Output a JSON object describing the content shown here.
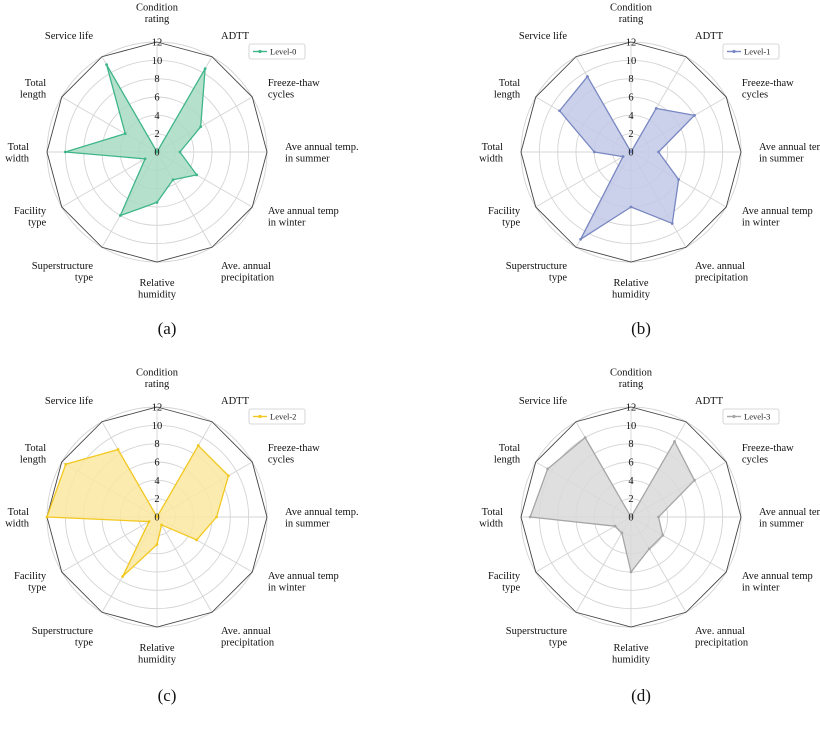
{
  "chart_data": [
    {
      "type": "radar",
      "panel_label": "(a)",
      "axes": [
        "Condition rating",
        "ADTT",
        "Freeze-thaw cycles",
        "Ave annual temp. in summer",
        "Ave annual temp in winter",
        "Ave. annual precipitation",
        "Relative humidity",
        "Superstructure type",
        "Facility type",
        "Total width",
        "Total length",
        "Service life"
      ],
      "axis_label_lines": [
        [
          "Condition",
          "rating"
        ],
        [
          "ADTT"
        ],
        [
          "Freeze-thaw",
          "cycles"
        ],
        [
          "Ave annual temp.",
          "in summer"
        ],
        [
          "Ave annual temp",
          "in winter"
        ],
        [
          "Ave. annual",
          "precipitation"
        ],
        [
          "Relative",
          "humidity"
        ],
        [
          "Superstructure",
          "type"
        ],
        [
          "Facility",
          "type"
        ],
        [
          "Total",
          "width"
        ],
        [
          "Total",
          "length"
        ],
        [
          "Service life"
        ]
      ],
      "ticks": [
        0,
        2,
        4,
        6,
        8,
        10,
        12
      ],
      "rlim": [
        0,
        12
      ],
      "grid": true,
      "legend_position": "top-right",
      "series": [
        {
          "name": "Level-0",
          "color": "#3fb58a",
          "fill": "#a8dcc3",
          "values": [
            0,
            10.5,
            5.5,
            2.5,
            5.0,
            3.5,
            5.5,
            8.0,
            1.5,
            10.0,
            4.0,
            11.0
          ]
        }
      ]
    },
    {
      "type": "radar",
      "panel_label": "(b)",
      "axes": [
        "Condition rating",
        "ADTT",
        "Freeze-thaw cycles",
        "Ave annual temp. in summer",
        "Ave annual temp in winter",
        "Ave. annual precipitation",
        "Relative humidity",
        "Superstructure type",
        "Facility type",
        "Total width",
        "Total length",
        "Service life"
      ],
      "axis_label_lines": [
        [
          "Condition",
          "rating"
        ],
        [
          "ADTT"
        ],
        [
          "Freeze-thaw",
          "cycles"
        ],
        [
          "Ave annual temp.",
          "in summer"
        ],
        [
          "Ave annual temp",
          "in winter"
        ],
        [
          "Ave. annual",
          "precipitation"
        ],
        [
          "Relative",
          "humidity"
        ],
        [
          "Superstructure",
          "type"
        ],
        [
          "Facility",
          "type"
        ],
        [
          "Total",
          "width"
        ],
        [
          "Total",
          "length"
        ],
        [
          "Service life"
        ]
      ],
      "ticks": [
        0,
        2,
        4,
        6,
        8,
        10,
        12
      ],
      "rlim": [
        0,
        12
      ],
      "grid": true,
      "legend_position": "top-right",
      "series": [
        {
          "name": "Level-1",
          "color": "#7987c2",
          "fill": "#c2c9e6",
          "values": [
            0,
            5.5,
            8.0,
            3.0,
            6.0,
            9.0,
            6.0,
            11.0,
            1.0,
            4.0,
            9.0,
            9.5
          ]
        }
      ]
    },
    {
      "type": "radar",
      "panel_label": "(c)",
      "axes": [
        "Condition rating",
        "ADTT",
        "Freeze-thaw cycles",
        "Ave annual temp. in summer",
        "Ave annual temp in winter",
        "Ave. annual precipitation",
        "Relative humidity",
        "Superstructure type",
        "Facility type",
        "Total width",
        "Total length",
        "Service life"
      ],
      "axis_label_lines": [
        [
          "Condition",
          "rating"
        ],
        [
          "ADTT"
        ],
        [
          "Freeze-thaw",
          "cycles"
        ],
        [
          "Ave annual temp.",
          "in summer"
        ],
        [
          "Ave annual temp",
          "in winter"
        ],
        [
          "Ave. annual",
          "precipitation"
        ],
        [
          "Relative",
          "humidity"
        ],
        [
          "Superstructure",
          "type"
        ],
        [
          "Facility",
          "type"
        ],
        [
          "Total",
          "width"
        ],
        [
          "Total",
          "length"
        ],
        [
          "Service life"
        ]
      ],
      "ticks": [
        0,
        2,
        4,
        6,
        8,
        10,
        12
      ],
      "rlim": [
        0,
        12
      ],
      "grid": true,
      "legend_position": "top-right",
      "series": [
        {
          "name": "Level-2",
          "color": "#f2c81f",
          "fill": "#fbe8a0",
          "values": [
            0,
            9.0,
            9.0,
            6.5,
            5.0,
            1.0,
            3.0,
            7.5,
            1.0,
            12.0,
            11.5,
            8.5
          ]
        }
      ]
    },
    {
      "type": "radar",
      "panel_label": "(d)",
      "axes": [
        "Condition rating",
        "ADTT",
        "Freeze-thaw cycles",
        "Ave annual temp. in summer",
        "Ave annual temp in winter",
        "Ave. annual precipitation",
        "Relative humidity",
        "Superstructure type",
        "Facility type",
        "Total width",
        "Total length",
        "Service life"
      ],
      "axis_label_lines": [
        [
          "Condition",
          "rating"
        ],
        [
          "ADTT"
        ],
        [
          "Freeze-thaw",
          "cycles"
        ],
        [
          "Ave annual temp.",
          "in summer"
        ],
        [
          "Ave annual temp",
          "in winter"
        ],
        [
          "Ave. annual",
          "precipitation"
        ],
        [
          "Relative",
          "humidity"
        ],
        [
          "Superstructure",
          "type"
        ],
        [
          "Facility",
          "type"
        ],
        [
          "Total",
          "width"
        ],
        [
          "Total",
          "length"
        ],
        [
          "Service life"
        ]
      ],
      "ticks": [
        0,
        2,
        4,
        6,
        8,
        10,
        12
      ],
      "rlim": [
        0,
        12
      ],
      "grid": true,
      "legend_position": "top-right",
      "series": [
        {
          "name": "Level-3",
          "color": "#a6a6a6",
          "fill": "#d9d9d9",
          "values": [
            0,
            9.5,
            8.0,
            3.0,
            4.0,
            4.0,
            6.0,
            2.0,
            2.0,
            11.0,
            10.5,
            10.0
          ]
        }
      ]
    }
  ]
}
